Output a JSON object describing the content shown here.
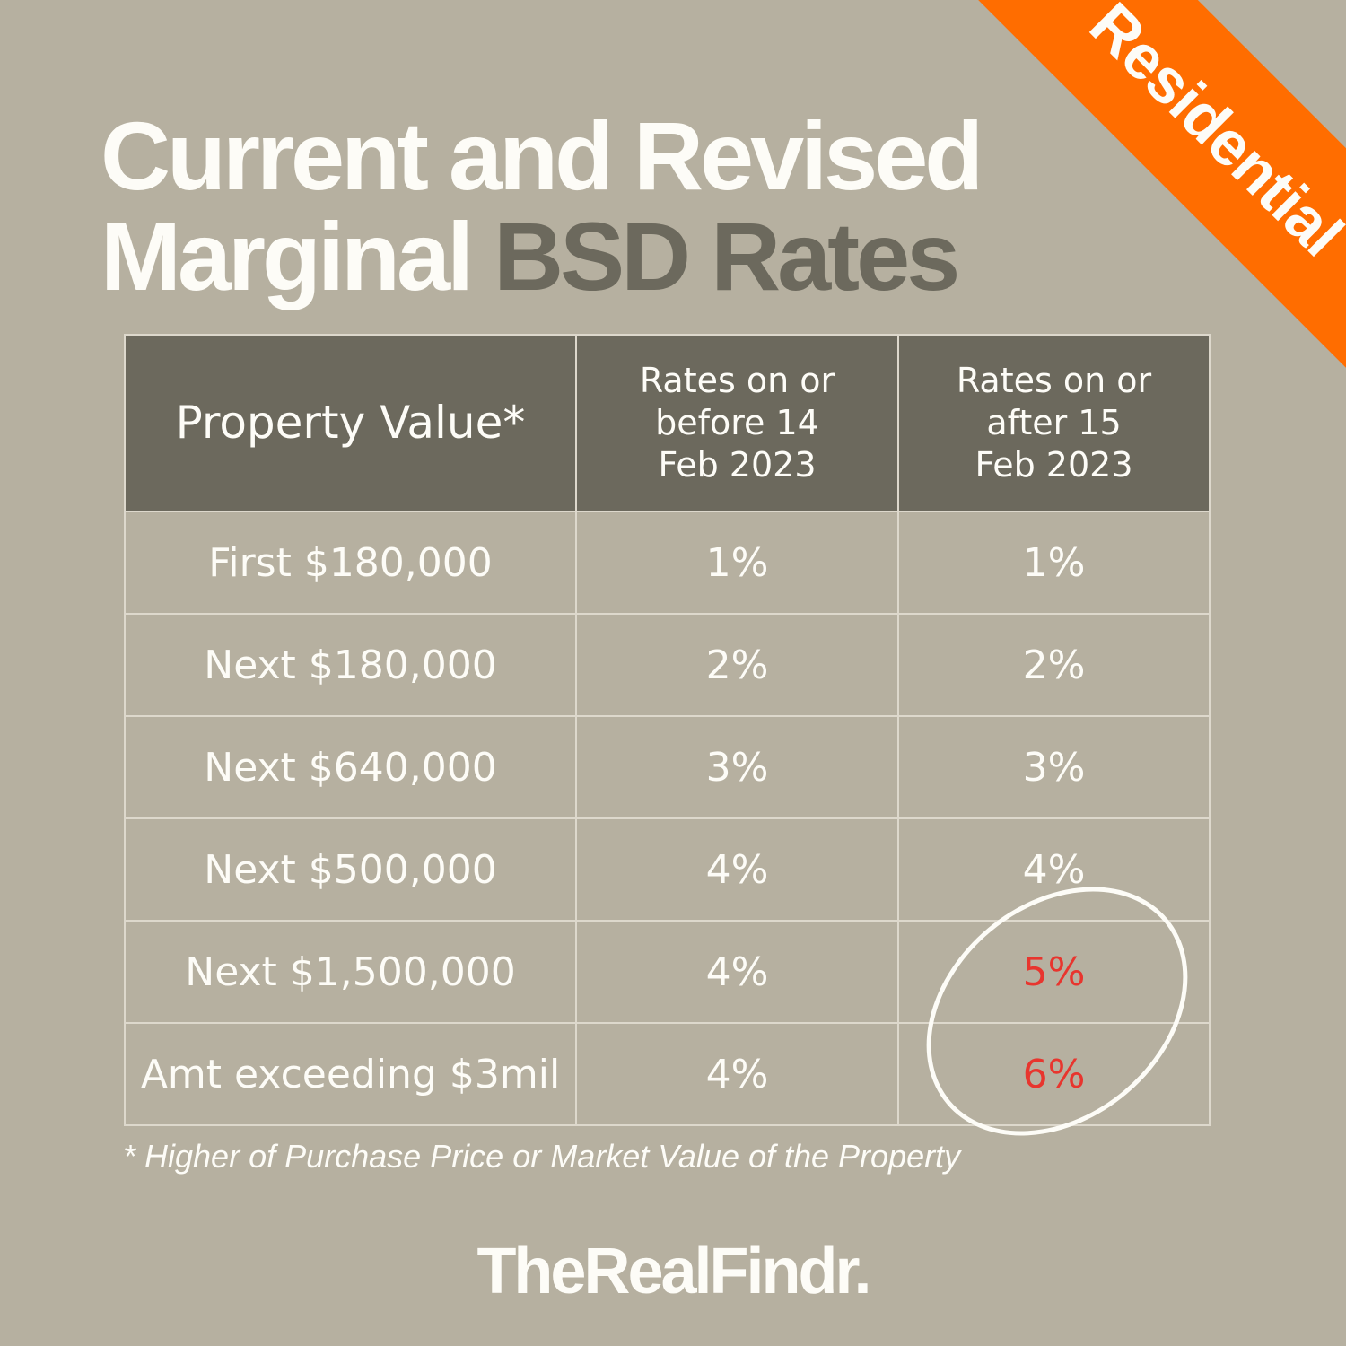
{
  "title": {
    "line1": "Current and Revised",
    "line2_light": "Marginal",
    "line2_dark": "BSD Rates"
  },
  "banner": "Residential",
  "table": {
    "headers": [
      "Property Value*",
      "Rates on or before 14 Feb 2023",
      "Rates on or after 15 Feb 2023"
    ],
    "rows": [
      {
        "value": "First $180,000",
        "before": "1%",
        "after": "1%"
      },
      {
        "value": "Next $180,000",
        "before": "2%",
        "after": "2%"
      },
      {
        "value": "Next $640,000",
        "before": "3%",
        "after": "3%"
      },
      {
        "value": "Next $500,000",
        "before": "4%",
        "after": "4%"
      },
      {
        "value": "Next $1,500,000",
        "before": "4%",
        "after": "5%"
      },
      {
        "value": "Amt exceeding $3mil",
        "before": "4%",
        "after": "6%"
      }
    ]
  },
  "footnote": "* Higher of Purchase Price or Market Value of the Property",
  "brand": "TheRealFindr.",
  "colors": {
    "background": "#b6b0a0",
    "header": "#6c695d",
    "banner": "#ff6d00",
    "highlight": "#e8352e"
  }
}
